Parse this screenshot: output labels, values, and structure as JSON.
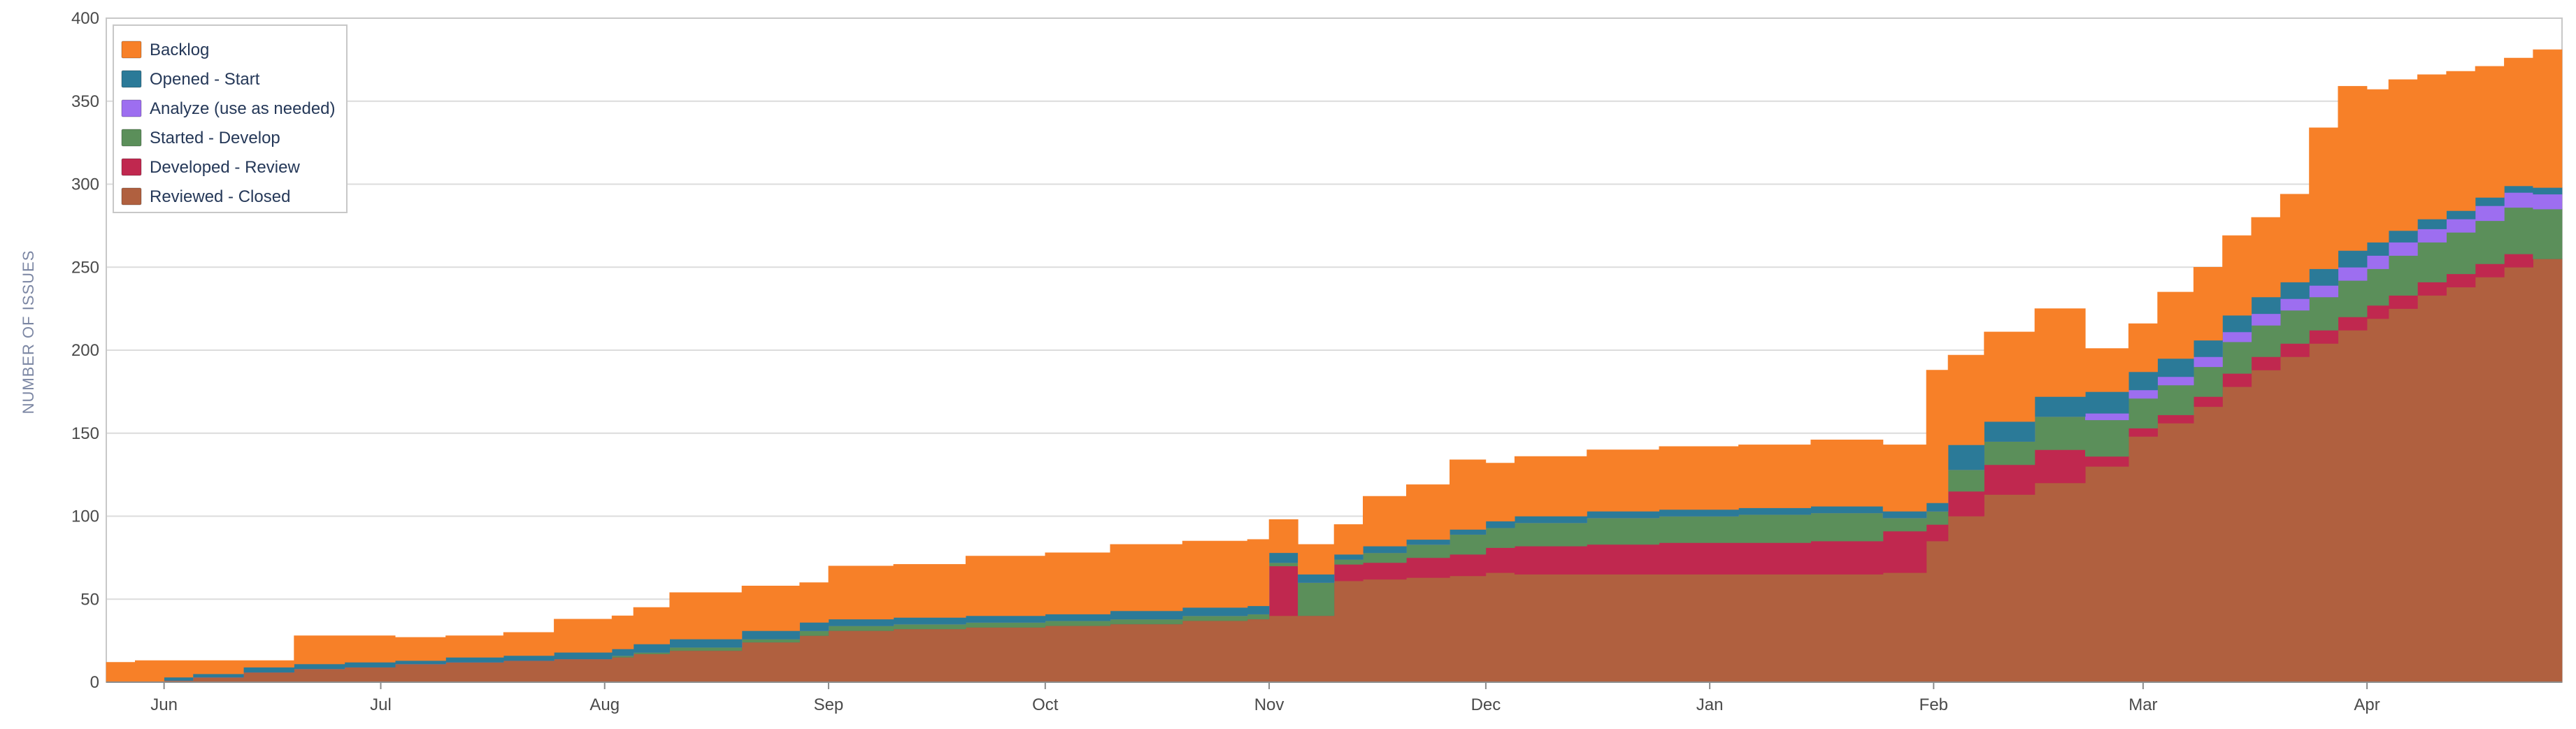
{
  "chart_data": {
    "type": "area",
    "stacked": true,
    "step": true,
    "title": "",
    "xlabel": "",
    "ylabel": "NUMBER OF ISSUES",
    "ylim": [
      0,
      400
    ],
    "yticks": [
      0,
      50,
      100,
      150,
      200,
      250,
      300,
      350,
      400
    ],
    "xlim": [
      "2023-05-24",
      "2024-04-28"
    ],
    "xticks": [
      {
        "date": "2023-06-01",
        "label": "Jun"
      },
      {
        "date": "2023-07-01",
        "label": "Jul"
      },
      {
        "date": "2023-08-01",
        "label": "Aug"
      },
      {
        "date": "2023-09-01",
        "label": "Sep"
      },
      {
        "date": "2023-10-01",
        "label": "Oct"
      },
      {
        "date": "2023-11-01",
        "label": "Nov"
      },
      {
        "date": "2023-12-01",
        "label": "Dec"
      },
      {
        "date": "2024-01-01",
        "label": "Jan"
      },
      {
        "date": "2024-02-01",
        "label": "Feb"
      },
      {
        "date": "2024-03-01",
        "label": "Mar"
      },
      {
        "date": "2024-04-01",
        "label": "Apr"
      }
    ],
    "grid": true,
    "legend_position": "top-left",
    "dates": [
      "2023-05-24",
      "2023-05-28",
      "2023-06-01",
      "2023-06-05",
      "2023-06-12",
      "2023-06-19",
      "2023-06-26",
      "2023-07-03",
      "2023-07-10",
      "2023-07-18",
      "2023-07-25",
      "2023-08-02",
      "2023-08-05",
      "2023-08-10",
      "2023-08-20",
      "2023-08-28",
      "2023-09-01",
      "2023-09-10",
      "2023-09-20",
      "2023-10-01",
      "2023-10-10",
      "2023-10-20",
      "2023-10-29",
      "2023-11-01",
      "2023-11-05",
      "2023-11-10",
      "2023-11-14",
      "2023-11-20",
      "2023-11-26",
      "2023-12-01",
      "2023-12-05",
      "2023-12-15",
      "2023-12-25",
      "2024-01-05",
      "2024-01-15",
      "2024-01-25",
      "2024-01-31",
      "2024-02-03",
      "2024-02-08",
      "2024-02-15",
      "2024-02-22",
      "2024-02-28",
      "2024-03-03",
      "2024-03-08",
      "2024-03-12",
      "2024-03-16",
      "2024-03-20",
      "2024-03-24",
      "2024-03-28",
      "2024-04-01",
      "2024-04-04",
      "2024-04-08",
      "2024-04-12",
      "2024-04-16",
      "2024-04-20",
      "2024-04-24"
    ],
    "series": [
      {
        "name": "Reviewed - Closed",
        "color": "#b0603f",
        "values": [
          0,
          0,
          1,
          3,
          6,
          8,
          9,
          11,
          12,
          13,
          14,
          15,
          17,
          19,
          24,
          28,
          31,
          32,
          33,
          34,
          35,
          37,
          38,
          40,
          50,
          61,
          62,
          63,
          64,
          66,
          65,
          65,
          65,
          65,
          65,
          66,
          85,
          100,
          113,
          120,
          130,
          148,
          156,
          166,
          178,
          188,
          196,
          204,
          212,
          219,
          225,
          233,
          238,
          244,
          250,
          255
        ]
      },
      {
        "name": "Developed - Review",
        "color": "#c0284f",
        "values": [
          0,
          0,
          0,
          0,
          0,
          0,
          0,
          0,
          0,
          0,
          0,
          0,
          0,
          0,
          0,
          0,
          0,
          0,
          0,
          0,
          0,
          0,
          0,
          30,
          -10,
          10,
          10,
          12,
          13,
          15,
          17,
          18,
          19,
          19,
          20,
          25,
          10,
          15,
          18,
          20,
          6,
          5,
          5,
          6,
          8,
          8,
          8,
          8,
          8,
          8,
          8,
          8,
          8,
          8,
          8,
          0
        ]
      },
      {
        "name": "Started - Develop",
        "color": "#5b8f5a",
        "values": [
          0,
          0,
          0,
          0,
          0,
          0,
          0,
          0,
          0,
          0,
          0,
          1,
          1,
          2,
          2,
          3,
          3,
          3,
          3,
          3,
          3,
          3,
          3,
          2,
          20,
          3,
          6,
          8,
          12,
          12,
          14,
          16,
          16,
          17,
          17,
          8,
          8,
          13,
          14,
          20,
          22,
          18,
          18,
          18,
          19,
          19,
          20,
          20,
          22,
          22,
          24,
          24,
          25,
          26,
          28,
          30
        ]
      },
      {
        "name": "Analyze (use as needed)",
        "color": "#9d6ef0",
        "values": [
          0,
          0,
          0,
          0,
          0,
          0,
          0,
          0,
          0,
          0,
          0,
          0,
          0,
          0,
          0,
          0,
          0,
          0,
          0,
          0,
          0,
          0,
          0,
          0,
          0,
          0,
          0,
          0,
          0,
          0,
          0,
          0,
          0,
          0,
          0,
          0,
          0,
          0,
          0,
          0,
          4,
          5,
          5,
          6,
          6,
          7,
          7,
          7,
          8,
          8,
          8,
          8,
          8,
          9,
          9,
          9
        ]
      },
      {
        "name": "Opened - Start",
        "color": "#2b7a98",
        "values": [
          0,
          0,
          2,
          2,
          3,
          3,
          3,
          2,
          3,
          3,
          4,
          4,
          5,
          5,
          5,
          5,
          4,
          4,
          4,
          4,
          5,
          5,
          5,
          6,
          5,
          3,
          4,
          3,
          3,
          4,
          4,
          4,
          4,
          4,
          4,
          4,
          5,
          15,
          12,
          12,
          13,
          11,
          11,
          10,
          10,
          10,
          10,
          10,
          10,
          8,
          7,
          6,
          5,
          5,
          4,
          4
        ]
      },
      {
        "name": "Backlog",
        "color": "#f78028",
        "values": [
          12,
          13,
          10,
          8,
          4,
          17,
          16,
          14,
          13,
          14,
          20,
          20,
          22,
          28,
          27,
          24,
          32,
          32,
          36,
          37,
          40,
          40,
          40,
          20,
          18,
          18,
          30,
          33,
          42,
          35,
          36,
          37,
          38,
          38,
          40,
          40,
          80,
          54,
          54,
          53,
          26,
          29,
          40,
          44,
          48,
          48,
          53,
          85,
          99,
          92,
          91,
          87,
          84,
          79,
          77,
          83
        ]
      }
    ],
    "legend_order": [
      "Backlog",
      "Opened - Start",
      "Analyze (use as needed)",
      "Started - Develop",
      "Developed - Review",
      "Reviewed - Closed"
    ]
  },
  "colors": {
    "grid": "#dcdcdc",
    "axis": "#8c8c8c",
    "plot_border": "#c8c8c8"
  }
}
